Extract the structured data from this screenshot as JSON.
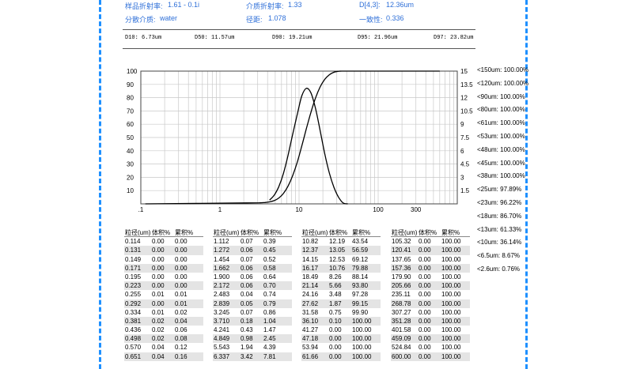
{
  "params": {
    "sample_ri_label": "样品折射率:",
    "sample_ri_value": "1.61 - 0.1i",
    "medium_ri_label": "介质折射率:",
    "medium_ri_value": "1.33",
    "d43_label": "D[4,3]:",
    "d43_value": "12.36um",
    "dispersant_label": "分散介质:",
    "dispersant_value": "water",
    "span_label": "径距:",
    "span_value": "1.078",
    "uniformity_label": "一致性:",
    "uniformity_value": "0.336"
  },
  "d_values": {
    "d10": "D10: 6.73um",
    "d50": "D50: 11.57um",
    "d90": "D90: 19.21um",
    "d95": "D95: 21.96um",
    "d97": "D97: 23.82um"
  },
  "chart_data": {
    "type": "line",
    "x_scale": "log",
    "xlim": [
      0.1,
      1000
    ],
    "x_tick_labels": [
      ".1",
      "1",
      "10",
      "100",
      "300"
    ],
    "x_ticks": [
      0.1,
      1,
      10,
      100,
      300
    ],
    "ylim_left": [
      0,
      100
    ],
    "y_left_ticks": [
      10,
      20,
      30,
      40,
      50,
      60,
      70,
      80,
      90,
      100
    ],
    "ylim_right": [
      0,
      15
    ],
    "y_right_ticks": [
      "1.5",
      "3",
      "4.5",
      "6",
      "7.5",
      "9",
      "10.5",
      "12",
      "13.5",
      "15"
    ],
    "grid": true,
    "series": [
      {
        "axis": "right",
        "x": [
          4.241,
          4.849,
          5.543,
          6.337,
          7.244,
          8.281,
          9.467,
          10.82,
          12.37,
          14.15,
          16.17,
          18.49,
          21.14,
          24.16,
          27.62,
          31.58,
          36.1,
          41.27
        ],
        "y": [
          0.43,
          0.98,
          1.94,
          3.42,
          5.45,
          7.8,
          10.06,
          12.19,
          13.05,
          12.53,
          10.76,
          8.26,
          5.66,
          3.48,
          1.87,
          0.75,
          0.1,
          0.0
        ]
      },
      {
        "axis": "left",
        "x": [
          0.114,
          2.172,
          3.245,
          3.71,
          4.241,
          4.849,
          5.543,
          6.337,
          7.244,
          8.281,
          9.467,
          10.82,
          12.37,
          14.15,
          16.17,
          18.49,
          21.14,
          24.16,
          27.62,
          31.58,
          36.1,
          41.27,
          600
        ],
        "y": [
          0,
          0.7,
          0.86,
          1.04,
          1.47,
          2.45,
          4.39,
          7.81,
          13.26,
          21.06,
          31.12,
          43.54,
          56.59,
          69.12,
          79.88,
          88.14,
          93.8,
          97.28,
          99.15,
          99.9,
          100,
          100,
          100
        ]
      }
    ]
  },
  "cumulative": [
    "<150um: 100.00%",
    "<120um: 100.00%",
    "<90um: 100.00%",
    "<80um: 100.00%",
    "<61um: 100.00%",
    "<53um: 100.00%",
    "<48um: 100.00%",
    "<45um: 100.00%",
    "<38um: 100.00%",
    "<25um: 97.89%",
    "<23um: 96.22%",
    "<18um: 86.70%",
    "<13um: 61.33%",
    "<10um: 36.14%",
    "<6.5um: 8.67%",
    "<2.6um: 0.76%"
  ],
  "table": {
    "headers": [
      "粒径(um)",
      "体积%",
      "累积%"
    ],
    "columns": [
      [
        [
          "0.114",
          "0.00",
          "0.00"
        ],
        [
          "0.131",
          "0.00",
          "0.00"
        ],
        [
          "0.149",
          "0.00",
          "0.00"
        ],
        [
          "0.171",
          "0.00",
          "0.00"
        ],
        [
          "0.195",
          "0.00",
          "0.00"
        ],
        [
          "0.223",
          "0.00",
          "0.00"
        ],
        [
          "0.255",
          "0.01",
          "0.01"
        ],
        [
          "0.292",
          "0.00",
          "0.01"
        ],
        [
          "0.334",
          "0.01",
          "0.02"
        ],
        [
          "0.381",
          "0.02",
          "0.04"
        ],
        [
          "0.436",
          "0.02",
          "0.06"
        ],
        [
          "0.498",
          "0.02",
          "0.08"
        ],
        [
          "0.570",
          "0.04",
          "0.12"
        ],
        [
          "0.651",
          "0.04",
          "0.16"
        ]
      ],
      [
        [
          "1.112",
          "0.07",
          "0.39"
        ],
        [
          "1.272",
          "0.06",
          "0.45"
        ],
        [
          "1.454",
          "0.07",
          "0.52"
        ],
        [
          "1.662",
          "0.06",
          "0.58"
        ],
        [
          "1.900",
          "0.06",
          "0.64"
        ],
        [
          "2.172",
          "0.06",
          "0.70"
        ],
        [
          "2.483",
          "0.04",
          "0.74"
        ],
        [
          "2.839",
          "0.05",
          "0.79"
        ],
        [
          "3.245",
          "0.07",
          "0.86"
        ],
        [
          "3.710",
          "0.18",
          "1.04"
        ],
        [
          "4.241",
          "0.43",
          "1.47"
        ],
        [
          "4.849",
          "0.98",
          "2.45"
        ],
        [
          "5.543",
          "1.94",
          "4.39"
        ],
        [
          "6.337",
          "3.42",
          "7.81"
        ]
      ],
      [
        [
          "10.82",
          "12.19",
          "43.54"
        ],
        [
          "12.37",
          "13.05",
          "56.59"
        ],
        [
          "14.15",
          "12.53",
          "69.12"
        ],
        [
          "16.17",
          "10.76",
          "79.88"
        ],
        [
          "18.49",
          "8.26",
          "88.14"
        ],
        [
          "21.14",
          "5.66",
          "93.80"
        ],
        [
          "24.16",
          "3.48",
          "97.28"
        ],
        [
          "27.62",
          "1.87",
          "99.15"
        ],
        [
          "31.58",
          "0.75",
          "99.90"
        ],
        [
          "36.10",
          "0.10",
          "100.00"
        ],
        [
          "41.27",
          "0.00",
          "100.00"
        ],
        [
          "47.18",
          "0.00",
          "100.00"
        ],
        [
          "53.94",
          "0.00",
          "100.00"
        ],
        [
          "61.66",
          "0.00",
          "100.00"
        ]
      ],
      [
        [
          "105.32",
          "0.00",
          "100.00"
        ],
        [
          "120.41",
          "0.00",
          "100.00"
        ],
        [
          "137.65",
          "0.00",
          "100.00"
        ],
        [
          "157.36",
          "0.00",
          "100.00"
        ],
        [
          "179.90",
          "0.00",
          "100.00"
        ],
        [
          "205.66",
          "0.00",
          "100.00"
        ],
        [
          "235.11",
          "0.00",
          "100.00"
        ],
        [
          "268.78",
          "0.00",
          "100.00"
        ],
        [
          "307.27",
          "0.00",
          "100.00"
        ],
        [
          "351.28",
          "0.00",
          "100.00"
        ],
        [
          "401.58",
          "0.00",
          "100.00"
        ],
        [
          "459.09",
          "0.00",
          "100.00"
        ],
        [
          "524.84",
          "0.00",
          "100.00"
        ],
        [
          "600.00",
          "0.00",
          "100.00"
        ]
      ]
    ]
  },
  "colors": {
    "accent_blue": "#2e6fd8",
    "border_dash": "#1e90ff",
    "row_shade": "#e4e4e4"
  }
}
